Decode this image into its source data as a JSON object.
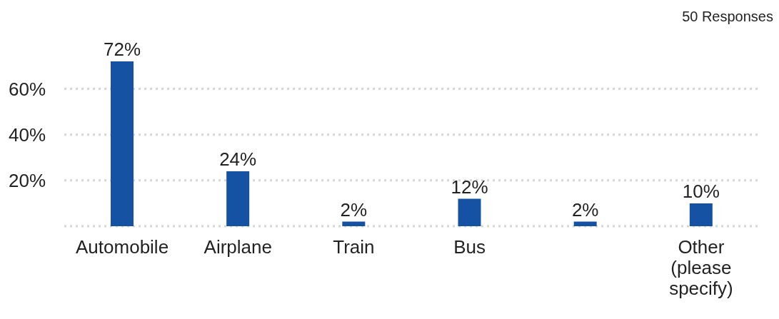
{
  "chart_data": {
    "type": "bar",
    "categories": [
      "Automobile",
      "Airplane",
      "Train",
      "Bus",
      null,
      "Other (please specify)"
    ],
    "values": [
      72,
      24,
      2,
      12,
      2,
      10
    ],
    "value_labels": [
      "72%",
      "24%",
      "2%",
      "12%",
      "2%",
      "10%"
    ],
    "color": "#1652a4",
    "ylim": [
      0,
      72
    ],
    "yticks": [
      {
        "value": 0,
        "label": null
      },
      {
        "value": 20,
        "label": "20%"
      },
      {
        "value": 40,
        "label": "40%"
      },
      {
        "value": 60,
        "label": "60%"
      }
    ],
    "grid": "y",
    "annotations": [
      "50 Responses"
    ]
  }
}
